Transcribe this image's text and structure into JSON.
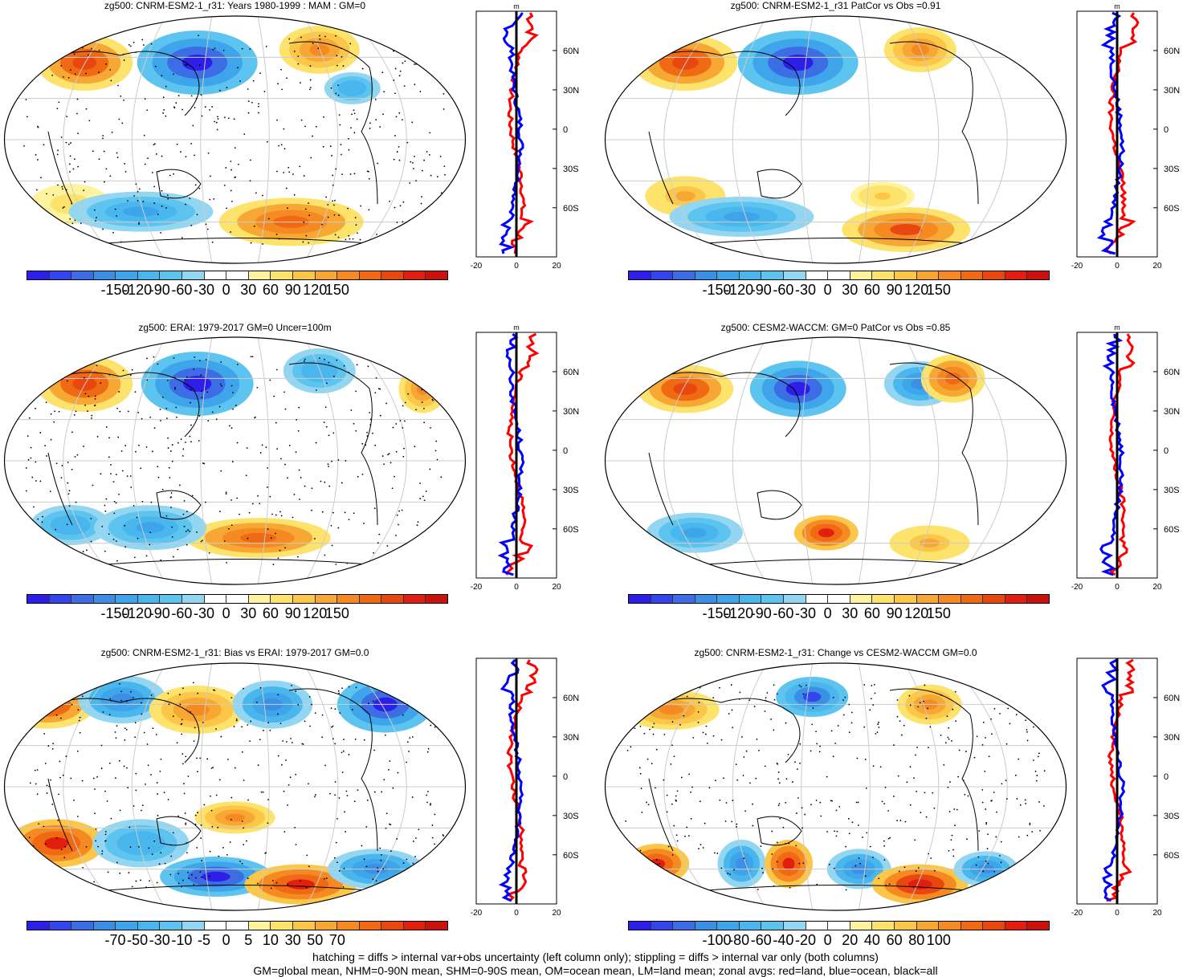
{
  "colors": {
    "scale": [
      "#2d1ee8",
      "#3346ee",
      "#3c6de5",
      "#3b8fe5",
      "#3fa5ea",
      "#49b6ee",
      "#5dc4ef",
      "#93d6f2",
      "#ffffff",
      "#ffffff",
      "#fff3a0",
      "#fde36b",
      "#fcc648",
      "#f7a834",
      "#f58a23",
      "#f06a14",
      "#e84710",
      "#e21e10",
      "#c9120c"
    ],
    "red": "#ff0000",
    "blue": "#0000ff",
    "black": "#000000"
  },
  "panels": [
    {
      "id": "p1",
      "title": "zg500: CNRM-ESM2-1_r31: Years 1980-1999 : MAM : GM=0",
      "colorbar_labels": [
        "-150",
        "-120",
        "-90",
        "-60",
        "-30",
        "0",
        "30",
        "60",
        "90",
        "120",
        "150"
      ],
      "zonal_xticks": [
        "-20",
        "0",
        "20"
      ],
      "zonal_unit": "m",
      "lat_labels": [
        "60N",
        "30N",
        "0",
        "30S",
        "60S"
      ]
    },
    {
      "id": "p2",
      "title": "zg500: CNRM-ESM2-1_r31 PatCor vs Obs =0.91",
      "colorbar_labels": [
        "-150",
        "-120",
        "-90",
        "-60",
        "-30",
        "0",
        "30",
        "60",
        "90",
        "120",
        "150"
      ],
      "zonal_xticks": [
        "-20",
        "0",
        "20"
      ],
      "zonal_unit": "m",
      "lat_labels": [
        "60N",
        "30N",
        "0",
        "30S",
        "60S"
      ]
    },
    {
      "id": "p3",
      "title": "zg500: ERAI: 1979-2017 GM=0 Uncer=100m",
      "colorbar_labels": [
        "-150",
        "-120",
        "-90",
        "-60",
        "-30",
        "0",
        "30",
        "60",
        "90",
        "120",
        "150"
      ],
      "zonal_xticks": [
        "-20",
        "0",
        "20"
      ],
      "zonal_unit": "m",
      "lat_labels": [
        "60N",
        "30N",
        "0",
        "30S",
        "60S"
      ]
    },
    {
      "id": "p4",
      "title": "zg500: CESM2-WACCM: GM=0 PatCor vs Obs =0.85",
      "colorbar_labels": [
        "-150",
        "-120",
        "-90",
        "-60",
        "-30",
        "0",
        "30",
        "60",
        "90",
        "120",
        "150"
      ],
      "zonal_xticks": [
        "-20",
        "0",
        "20"
      ],
      "zonal_unit": "m",
      "lat_labels": [
        "60N",
        "30N",
        "0",
        "30S",
        "60S"
      ]
    },
    {
      "id": "p5",
      "title": "zg500: CNRM-ESM2-1_r31: Bias vs ERAI: 1979-2017 GM=0.0",
      "colorbar_labels": [
        "-70",
        "-50",
        "-30",
        "-10",
        "-5",
        "0",
        "5",
        "10",
        "30",
        "50",
        "70"
      ],
      "zonal_xticks": [
        "-20",
        "0",
        "20"
      ],
      "zonal_unit": "",
      "lat_labels": [
        "60N",
        "30N",
        "0",
        "30S",
        "60S"
      ]
    },
    {
      "id": "p6",
      "title": "zg500: CNRM-ESM2-1_r31: Change vs CESM2-WACCM GM=0.0",
      "colorbar_labels": [
        "-100",
        "-80",
        "-60",
        "-40",
        "-20",
        "0",
        "20",
        "40",
        "60",
        "80",
        "100"
      ],
      "zonal_xticks": [
        "-20",
        "0",
        "20"
      ],
      "zonal_unit": "",
      "lat_labels": [
        "60N",
        "30N",
        "0",
        "30S",
        "60S"
      ]
    }
  ],
  "footer": {
    "line1": "hatching = diffs > internal var+obs uncertainty (left column only); stippling = diffs > internal var only (both columns)",
    "line2": "GM=global mean, NHM=0-90N mean, SHM=0-90S mean, OM=ocean mean, LM=land mean; zonal avgs: red=land, blue=ocean, black=all"
  }
}
